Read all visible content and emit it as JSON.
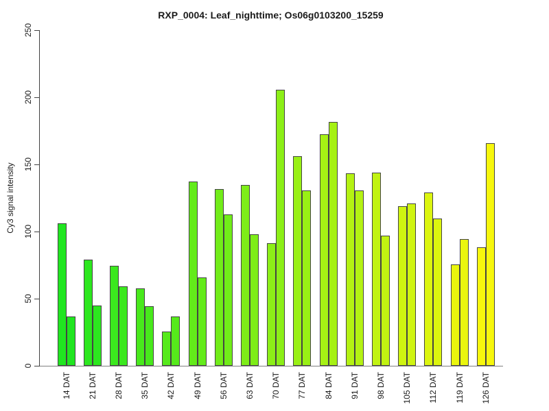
{
  "title": "RXP_0004: Leaf_nighttime; Os06g0103200_15259",
  "chart_data": {
    "type": "bar",
    "title": "RXP_0004: Leaf_nighttime; Os06g0103200_15259",
    "xlabel": "",
    "ylabel": "Cy3 signal intensity",
    "ylim": [
      0,
      250
    ],
    "yticks": [
      0,
      50,
      100,
      150,
      200,
      250
    ],
    "grid": false,
    "legend": "none",
    "bars_per_group": 2,
    "categories": [
      "14 DAT",
      "21 DAT",
      "28 DAT",
      "35 DAT",
      "42 DAT",
      "49 DAT",
      "56 DAT",
      "63 DAT",
      "70 DAT",
      "77 DAT",
      "84 DAT",
      "91 DAT",
      "98 DAT",
      "105 DAT",
      "112 DAT",
      "119 DAT",
      "126 DAT"
    ],
    "groups": [
      {
        "label": "14 DAT",
        "values": [
          106,
          36.5
        ],
        "color": "#20E620"
      },
      {
        "label": "21 DAT",
        "values": [
          79,
          45
        ],
        "color": "#2DE71F"
      },
      {
        "label": "28 DAT",
        "values": [
          74.5,
          59
        ],
        "color": "#3BE81E"
      },
      {
        "label": "35 DAT",
        "values": [
          57.5,
          44.5
        ],
        "color": "#48E91C"
      },
      {
        "label": "42 DAT",
        "values": [
          25.5,
          36.5
        ],
        "color": "#56EA1B"
      },
      {
        "label": "49 DAT",
        "values": [
          137,
          66
        ],
        "color": "#63EB1A"
      },
      {
        "label": "56 DAT",
        "values": [
          131.5,
          112.5
        ],
        "color": "#71EC19"
      },
      {
        "label": "63 DAT",
        "values": [
          134.5,
          98
        ],
        "color": "#7EED18"
      },
      {
        "label": "70 DAT",
        "values": [
          91.5,
          205.5
        ],
        "color": "#8CEF17"
      },
      {
        "label": "77 DAT",
        "values": [
          156,
          130.5
        ],
        "color": "#99F015"
      },
      {
        "label": "84 DAT",
        "values": [
          172.5,
          181.5
        ],
        "color": "#A6F114"
      },
      {
        "label": "91 DAT",
        "values": [
          143.5,
          130.5
        ],
        "color": "#B4F213"
      },
      {
        "label": "98 DAT",
        "values": [
          144,
          97
        ],
        "color": "#C1F312"
      },
      {
        "label": "105 DAT",
        "values": [
          119,
          121
        ],
        "color": "#CFF411"
      },
      {
        "label": "112 DAT",
        "values": [
          129,
          109.5
        ],
        "color": "#DCF50F"
      },
      {
        "label": "119 DAT",
        "values": [
          75.5,
          94.5
        ],
        "color": "#EAF60E"
      },
      {
        "label": "126 DAT",
        "values": [
          88.5,
          166
        ],
        "color": "#F7F70D"
      }
    ]
  },
  "colors": {
    "background": "#FFFFFF",
    "text": "#1A1A1A",
    "axis_line": "#404040",
    "baseline": "#808080",
    "bar_border": "#444444",
    "gradient_start": "#20E620",
    "gradient_end": "#F7F70D"
  }
}
